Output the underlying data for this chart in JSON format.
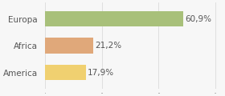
{
  "categories": [
    "America",
    "Africa",
    "Europa"
  ],
  "values": [
    17.9,
    21.2,
    60.9
  ],
  "labels": [
    "17,9%",
    "21,2%",
    "60,9%"
  ],
  "bar_colors": [
    "#f0d070",
    "#e0a87a",
    "#a8c07a"
  ],
  "background_color": "#f7f7f7",
  "xlim": [
    0,
    78
  ],
  "label_fontsize": 7.5,
  "tick_fontsize": 7.5,
  "bar_height": 0.58
}
